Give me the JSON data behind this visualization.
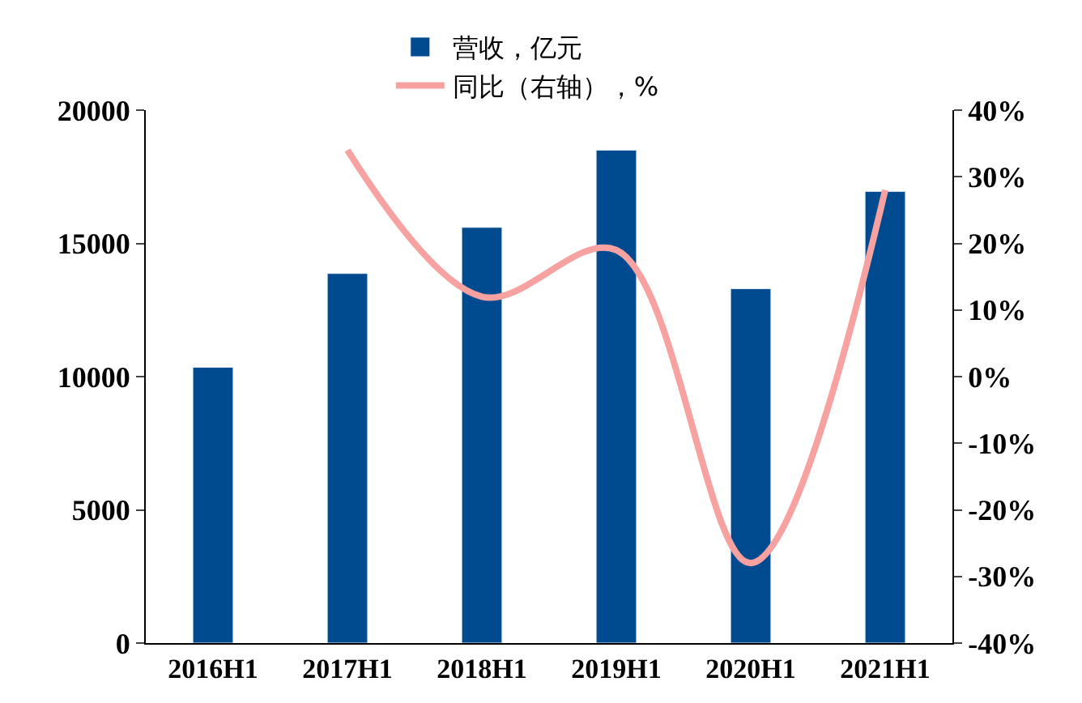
{
  "chart_data": {
    "type": "bar",
    "categories": [
      "2016H1",
      "2017H1",
      "2018H1",
      "2019H1",
      "2020H1",
      "2021H1"
    ],
    "series": [
      {
        "name": "营收，亿元",
        "color": "#004a8f",
        "values": [
          10350,
          13870,
          15600,
          18500,
          13300,
          16950
        ]
      },
      {
        "name": "同比（右轴），%",
        "type": "line",
        "axis": "y2",
        "color": "#f7a1a1",
        "values": [
          null,
          34,
          12,
          19,
          -28,
          28
        ]
      }
    ],
    "ylim": [
      0,
      20000
    ],
    "yticks": [
      0,
      5000,
      10000,
      15000,
      20000
    ],
    "y2lim": [
      -40,
      40
    ],
    "y2ticks": [
      {
        "value": -40,
        "label": "-40%"
      },
      {
        "value": -30,
        "label": "-30%"
      },
      {
        "value": -20,
        "label": "-20%"
      },
      {
        "value": -10,
        "label": "-10%"
      },
      {
        "value": 0,
        "label": "0%"
      },
      {
        "value": 10,
        "label": "10%"
      },
      {
        "value": 20,
        "label": "20%"
      },
      {
        "value": 30,
        "label": "30%"
      },
      {
        "value": 40,
        "label": "40%"
      }
    ],
    "legend": "top",
    "marker": "none"
  }
}
